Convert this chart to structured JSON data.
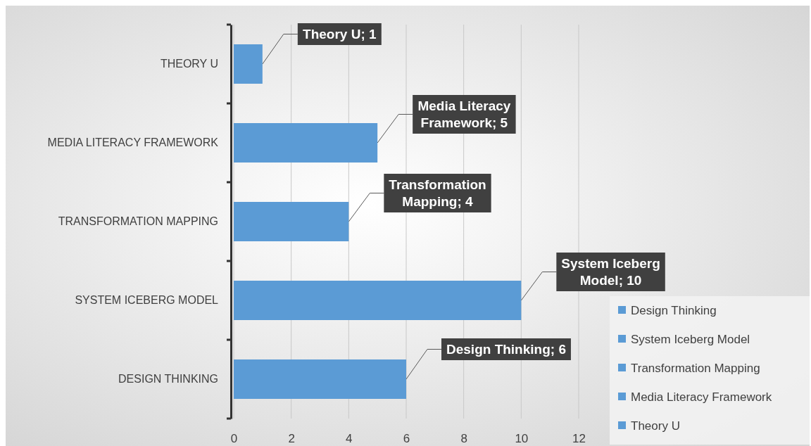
{
  "chart_data": {
    "type": "bar",
    "orientation": "horizontal",
    "categories": [
      "THEORY U",
      "MEDIA LITERACY FRAMEWORK",
      "TRANSFORMATION MAPPING",
      "SYSTEM ICEBERG MODEL",
      "DESIGN THINKING"
    ],
    "series": [
      {
        "name": "Design Thinking",
        "color": "#5b9bd5",
        "values": [
          null,
          null,
          null,
          null,
          6
        ],
        "value_labels": [
          null,
          null,
          null,
          null,
          "Design Thinking; 6"
        ]
      },
      {
        "name": "System Iceberg Model",
        "color": "#5b9bd5",
        "values": [
          null,
          null,
          null,
          10,
          null
        ],
        "value_labels": [
          null,
          null,
          null,
          "System Iceberg Model; 10",
          null
        ]
      },
      {
        "name": "Transformation Mapping",
        "color": "#5b9bd5",
        "values": [
          null,
          null,
          4,
          null,
          null
        ],
        "value_labels": [
          null,
          null,
          "Transformation Mapping; 4",
          null,
          null
        ]
      },
      {
        "name": "Media Literacy Framework",
        "color": "#5b9bd5",
        "values": [
          null,
          5,
          null,
          null,
          null
        ],
        "value_labels": [
          null,
          "Media Literacy Framework; 5",
          null,
          null,
          null
        ]
      },
      {
        "name": "Theory U",
        "color": "#5b9bd5",
        "values": [
          1,
          null,
          null,
          null,
          null
        ],
        "value_labels": [
          "Theory U; 1",
          null,
          null,
          null,
          null
        ]
      }
    ],
    "xlim": [
      0,
      12
    ],
    "xticks": [
      0,
      2,
      4,
      6,
      8,
      10,
      12
    ],
    "grid": "x",
    "legend": "bottom right"
  }
}
